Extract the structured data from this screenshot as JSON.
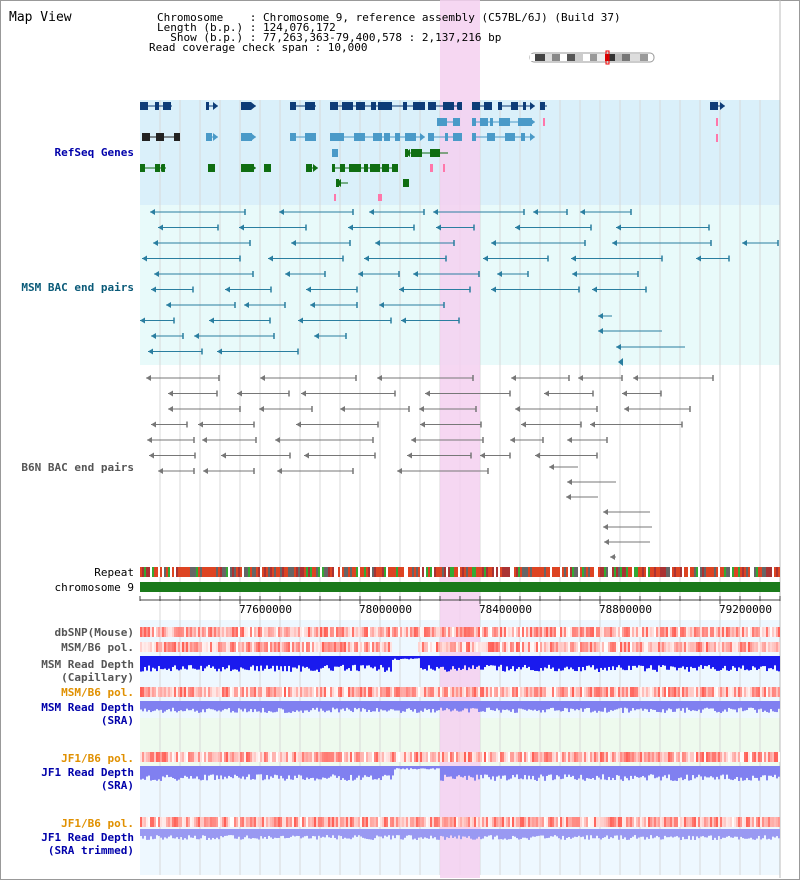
{
  "view_title": "Map View",
  "header": {
    "chromosome_line": "Chromosome    : Chromosome 9, reference assembly (C57BL/6J) (Build 37)",
    "length_line": "Length (b.p.) : 124,076,172",
    "show_line": "  Show (b.p.) : 77,263,363-79,400,578 : 2,137,216 bp",
    "span_line": "Read coverage check span : 10,000"
  },
  "tracks": {
    "refseq": "RefSeq Genes",
    "msm_bac": "MSM BAC end pairs",
    "b6n_bac": "B6N BAC end pairs",
    "repeat": "Repeat",
    "chromosome": "chromosome 9",
    "dbsnp": "dbSNP(Mouse)",
    "msm_pol1": "MSM/B6 pol.",
    "msm_depth_cap": "MSM Read Depth\n(Capillary)",
    "msm_pol2": "MSM/B6 pol.",
    "msm_depth_sra": "MSM Read Depth\n(SRA)",
    "jf1_pol1": "JF1/B6 pol.",
    "jf1_depth_sra": "JF1 Read Depth\n(SRA)",
    "jf1_pol2": "JF1/B6 pol.",
    "jf1_depth_trim": "JF1 Read Depth\n(SRA trimmed)"
  },
  "scale": {
    "ticks": [
      "77600000",
      "78000000",
      "78400000",
      "78800000",
      "79200000"
    ]
  },
  "colors": {
    "refseq_bg": "#daf0fa",
    "bac_bg": "#e8fafa",
    "highlight": "#f5d0f0",
    "gene_dark": "#0d3c78",
    "gene_mid": "#4a9ac8",
    "gene_green": "#0f6e12",
    "msm_line": "#2a7ea0",
    "b6n_line": "#777777",
    "chrom_green": "#1a7a1a",
    "depth_blue": "#1a1aee",
    "depth_light": "#8080f0",
    "label_blue": "#0000aa",
    "label_teal": "#0a5a78",
    "label_orange": "#e09000"
  }
}
